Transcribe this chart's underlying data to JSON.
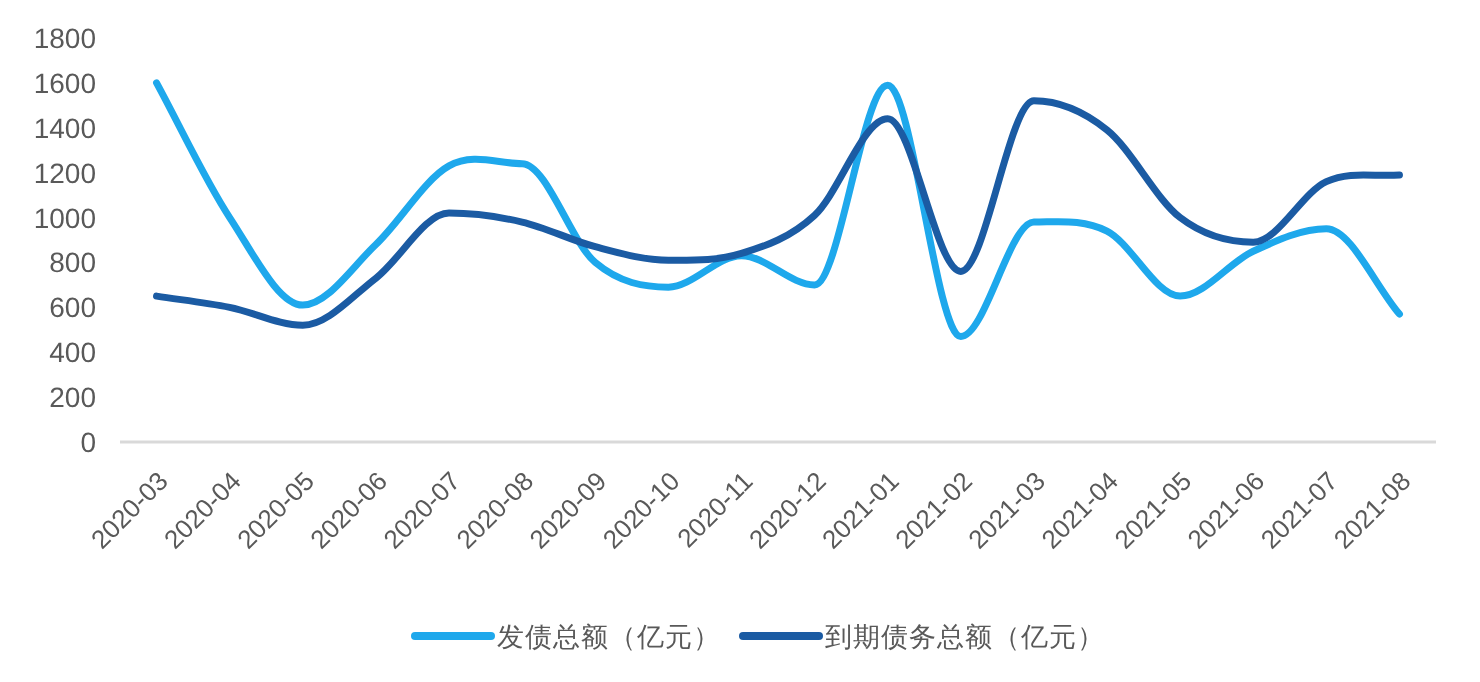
{
  "chart_data": {
    "type": "line",
    "categories": [
      "2020-03",
      "2020-04",
      "2020-05",
      "2020-06",
      "2020-07",
      "2020-08",
      "2020-09",
      "2020-10",
      "2020-11",
      "2020-12",
      "2021-01",
      "2021-02",
      "2021-03",
      "2021-04",
      "2021-05",
      "2021-06",
      "2021-07",
      "2021-08"
    ],
    "series": [
      {
        "name": "发债总额（亿元）",
        "color": "#1ea8ec",
        "values": [
          1600,
          1000,
          610,
          880,
          1230,
          1240,
          800,
          690,
          830,
          700,
          1590,
          470,
          980,
          940,
          650,
          850,
          950,
          570
        ]
      },
      {
        "name": "到期债务总额（亿元）",
        "color": "#1b5ba3",
        "values": [
          650,
          600,
          520,
          730,
          1020,
          980,
          870,
          810,
          840,
          1010,
          1440,
          760,
          1520,
          1390,
          1000,
          890,
          1160,
          1190
        ]
      }
    ],
    "ylim": [
      0,
      1800
    ],
    "yticks": [
      0,
      200,
      400,
      600,
      800,
      1000,
      1200,
      1400,
      1600,
      1800
    ],
    "grid": false,
    "legend": "bottom",
    "marker": "none",
    "line_style": "solid"
  }
}
